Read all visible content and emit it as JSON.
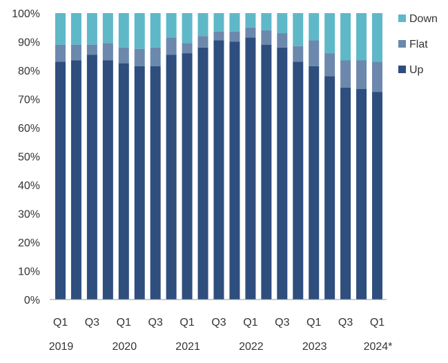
{
  "chart_data": {
    "type": "bar",
    "stacked": true,
    "categories": [
      "Q1 2019",
      "Q2 2019",
      "Q3 2019",
      "Q4 2019",
      "Q1 2020",
      "Q2 2020",
      "Q3 2020",
      "Q4 2020",
      "Q1 2021",
      "Q2 2021",
      "Q3 2021",
      "Q4 2021",
      "Q1 2022",
      "Q2 2022",
      "Q3 2022",
      "Q4 2022",
      "Q1 2023",
      "Q2 2023",
      "Q3 2023",
      "Q4 2023",
      "Q1 2024"
    ],
    "x_tick_labels": [
      "Q1",
      "",
      "Q3",
      "",
      "Q1",
      "",
      "Q3",
      "",
      "Q1",
      "",
      "Q3",
      "",
      "Q1",
      "",
      "Q3",
      "",
      "Q1",
      "",
      "Q3",
      "",
      "Q1"
    ],
    "year_labels": [
      {
        "index": 0,
        "label": "2019"
      },
      {
        "index": 4,
        "label": "2020"
      },
      {
        "index": 8,
        "label": "2021"
      },
      {
        "index": 12,
        "label": "2022"
      },
      {
        "index": 16,
        "label": "2023"
      },
      {
        "index": 20,
        "label": "2024*"
      }
    ],
    "series": [
      {
        "name": "Up",
        "color": "#2e4e7e",
        "values": [
          83,
          83.5,
          85.5,
          83.5,
          82.5,
          81.5,
          81.5,
          85.5,
          86,
          88,
          90.5,
          90,
          91.5,
          89,
          88,
          83,
          81.5,
          78,
          74,
          73.5,
          72.5
        ]
      },
      {
        "name": "Flat",
        "color": "#6c88ad",
        "values": [
          6,
          5.5,
          3.5,
          6,
          5.5,
          6,
          6.5,
          6,
          3.5,
          4,
          3,
          3.5,
          3.5,
          5,
          5,
          5.5,
          9,
          8,
          9.5,
          10,
          10.5
        ]
      },
      {
        "name": "Down",
        "color": "#5fb8c8",
        "values": [
          11,
          11,
          11,
          10.5,
          12,
          12.5,
          12,
          8.5,
          10.5,
          8,
          6.5,
          6.5,
          5,
          6,
          7,
          11.5,
          9.5,
          14,
          16.5,
          16.5,
          17
        ]
      }
    ],
    "y_tick_labels": [
      "0%",
      "10%",
      "20%",
      "30%",
      "40%",
      "50%",
      "60%",
      "70%",
      "80%",
      "90%",
      "100%"
    ],
    "ylim": [
      0,
      100
    ],
    "legend_position": "top-right",
    "legend_order": [
      "Down",
      "Flat",
      "Up"
    ],
    "grid": false
  }
}
